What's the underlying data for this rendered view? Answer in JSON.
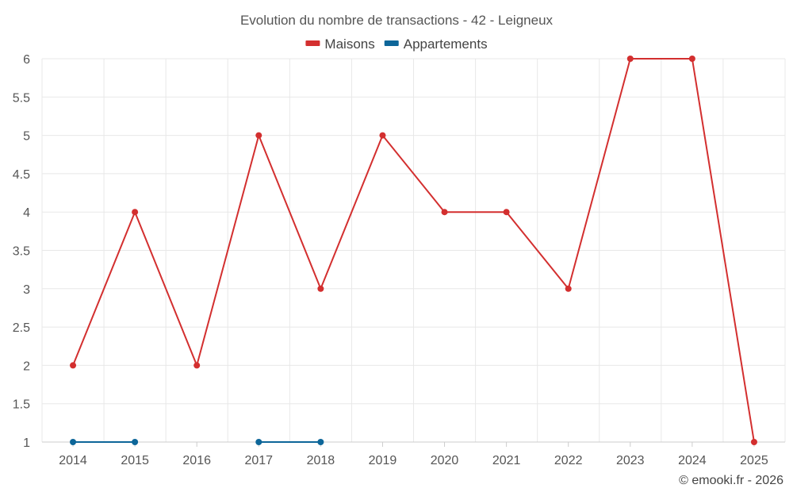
{
  "chart_data": {
    "type": "line",
    "title": "Evolution du nombre de transactions - 42 - Leigneux",
    "xlabel": "",
    "ylabel": "",
    "categories": [
      "2014",
      "2015",
      "2016",
      "2017",
      "2018",
      "2019",
      "2020",
      "2021",
      "2022",
      "2023",
      "2024",
      "2025"
    ],
    "ylim": [
      1,
      6
    ],
    "yticks": [
      "1",
      "1.5",
      "2",
      "2.5",
      "3",
      "3.5",
      "4",
      "4.5",
      "5",
      "5.5",
      "6"
    ],
    "grid": true,
    "legend_position": "top-center",
    "series": [
      {
        "name": "Maisons",
        "color": "#d32f2f",
        "values": [
          2,
          4,
          2,
          5,
          3,
          5,
          4,
          4,
          3,
          6,
          6,
          1
        ]
      },
      {
        "name": "Appartements",
        "color": "#0d6699",
        "values": [
          1,
          1,
          null,
          1,
          1,
          null,
          null,
          null,
          null,
          null,
          null,
          null
        ]
      }
    ]
  },
  "credit": "© emooki.fr - 2026"
}
